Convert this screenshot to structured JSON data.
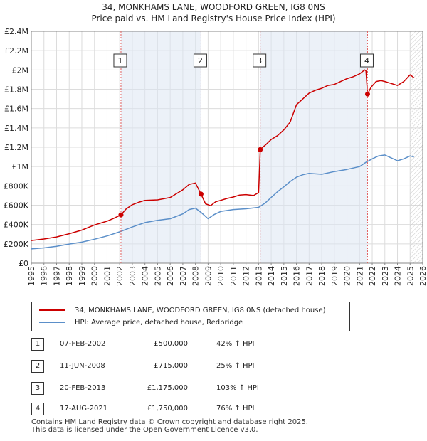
{
  "title_line1": "34, MONKHAMS LANE, WOODFORD GREEN, IG8 0NS",
  "title_line2": "Price paid vs. HM Land Registry's House Price Index (HPI)",
  "colors": {
    "price_line": "#cc0000",
    "hpi_line": "#5b8fc9",
    "shade": "#dde6f3",
    "marker_line": "#e06060"
  },
  "chart_data": {
    "type": "line",
    "title": "34, MONKHAMS LANE, WOODFORD GREEN, IG8 0NS — Price paid vs. HM Land Registry's House Price Index (HPI)",
    "xlim": [
      1995,
      2026
    ],
    "ylim": [
      0,
      2400000
    ],
    "yticks": [
      0,
      200000,
      400000,
      600000,
      800000,
      1000000,
      1200000,
      1400000,
      1600000,
      1800000,
      2000000,
      2200000,
      2400000
    ],
    "ytick_labels": [
      "£0",
      "£200K",
      "£400K",
      "£600K",
      "£800K",
      "£1M",
      "£1.2M",
      "£1.4M",
      "£1.6M",
      "£1.8M",
      "£2M",
      "£2.2M",
      "£2.4M"
    ],
    "xticks": [
      1995,
      1996,
      1997,
      1998,
      1999,
      2000,
      2001,
      2002,
      2003,
      2004,
      2005,
      2006,
      2007,
      2008,
      2009,
      2010,
      2011,
      2012,
      2013,
      2014,
      2015,
      2016,
      2017,
      2018,
      2019,
      2020,
      2021,
      2022,
      2023,
      2024,
      2025,
      2026
    ],
    "grid": true,
    "forecast_hatch_start": 2025.0,
    "series": [
      {
        "name": "34, MONKHAMS LANE, WOODFORD GREEN, IG8 0NS (detached house)",
        "x": [
          1995.0,
          1996.0,
          1997.0,
          1998.0,
          1999.0,
          2000.0,
          2001.0,
          2001.5,
          2002.1,
          2002.5,
          2003.0,
          2003.5,
          2004.0,
          2005.0,
          2006.0,
          2007.0,
          2007.5,
          2008.0,
          2008.44,
          2008.8,
          2009.2,
          2009.6,
          2010.0,
          2010.5,
          2011.0,
          2011.5,
          2012.0,
          2012.6,
          2013.0,
          2013.13,
          2013.2,
          2013.6,
          2014.0,
          2014.5,
          2015.0,
          2015.5,
          2016.0,
          2016.5,
          2017.0,
          2017.5,
          2018.0,
          2018.5,
          2019.0,
          2019.5,
          2020.0,
          2020.5,
          2021.0,
          2021.4,
          2021.5,
          2021.63,
          2021.9,
          2022.3,
          2022.7,
          2023.0,
          2023.5,
          2024.0,
          2024.5,
          2025.0,
          2025.3
        ],
        "y": [
          235000,
          250000,
          272000,
          305000,
          342000,
          395000,
          435000,
          462000,
          500000,
          560000,
          605000,
          630000,
          650000,
          655000,
          680000,
          760000,
          815000,
          830000,
          715000,
          615000,
          595000,
          635000,
          650000,
          670000,
          685000,
          705000,
          710000,
          700000,
          730000,
          1175000,
          1185000,
          1230000,
          1280000,
          1320000,
          1380000,
          1460000,
          1640000,
          1700000,
          1760000,
          1790000,
          1810000,
          1840000,
          1850000,
          1880000,
          1910000,
          1930000,
          1960000,
          2000000,
          1990000,
          1750000,
          1820000,
          1880000,
          1890000,
          1880000,
          1860000,
          1840000,
          1880000,
          1950000,
          1920000
        ]
      },
      {
        "name": "HPI: Average price, detached house, Redbridge",
        "x": [
          1995.0,
          1996.0,
          1997.0,
          1998.0,
          1999.0,
          2000.0,
          2001.0,
          2002.0,
          2003.0,
          2004.0,
          2005.0,
          2006.0,
          2007.0,
          2007.5,
          2008.0,
          2008.5,
          2009.0,
          2009.5,
          2010.0,
          2011.0,
          2012.0,
          2013.0,
          2013.5,
          2014.0,
          2014.5,
          2015.0,
          2015.5,
          2016.0,
          2016.5,
          2017.0,
          2018.0,
          2019.0,
          2020.0,
          2021.0,
          2021.5,
          2022.0,
          2022.5,
          2023.0,
          2023.5,
          2024.0,
          2024.5,
          2025.0,
          2025.3
        ],
        "y": [
          148000,
          158000,
          175000,
          198000,
          218000,
          248000,
          282000,
          325000,
          375000,
          420000,
          443000,
          460000,
          510000,
          555000,
          570000,
          520000,
          460000,
          505000,
          535000,
          555000,
          563000,
          578000,
          620000,
          680000,
          740000,
          790000,
          845000,
          890000,
          915000,
          930000,
          920000,
          948000,
          970000,
          1000000,
          1045000,
          1080000,
          1110000,
          1120000,
          1090000,
          1060000,
          1080000,
          1110000,
          1100000
        ]
      }
    ],
    "sales": [
      {
        "n": "1",
        "date": "07-FEB-2002",
        "price": "£500,000",
        "hpi": "42% ↑ HPI",
        "x": 2002.1,
        "y": 500000
      },
      {
        "n": "2",
        "date": "11-JUN-2008",
        "price": "£715,000",
        "hpi": "25% ↑ HPI",
        "x": 2008.44,
        "y": 715000
      },
      {
        "n": "3",
        "date": "20-FEB-2013",
        "price": "£1,175,000",
        "hpi": "103% ↑ HPI",
        "x": 2013.13,
        "y": 1175000
      },
      {
        "n": "4",
        "date": "17-AUG-2021",
        "price": "£1,750,000",
        "hpi": "76% ↑ HPI",
        "x": 2021.63,
        "y": 1750000
      }
    ]
  },
  "legend": {
    "red_label": "34, MONKHAMS LANE, WOODFORD GREEN, IG8 0NS (detached house)",
    "blue_label": "HPI: Average price, detached house, Redbridge"
  },
  "table": [
    {
      "n": "1",
      "date": "07-FEB-2002",
      "price": "£500,000",
      "hpi": "42% ↑ HPI"
    },
    {
      "n": "2",
      "date": "11-JUN-2008",
      "price": "£715,000",
      "hpi": "25% ↑ HPI"
    },
    {
      "n": "3",
      "date": "20-FEB-2013",
      "price": "£1,175,000",
      "hpi": "103% ↑ HPI"
    },
    {
      "n": "4",
      "date": "17-AUG-2021",
      "price": "£1,750,000",
      "hpi": "76% ↑ HPI"
    }
  ],
  "footer_line1": "Contains HM Land Registry data © Crown copyright and database right 2025.",
  "footer_line2": "This data is licensed under the Open Government Licence v3.0."
}
